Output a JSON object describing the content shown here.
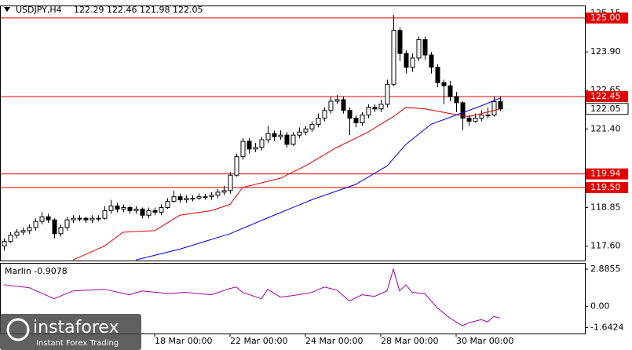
{
  "chart_data": {
    "type": "candlestick",
    "symbol": "USDJPY,H4",
    "categories": [
      null,
      null,
      null,
      null,
      null,
      null,
      null,
      null,
      null,
      null,
      null,
      null,
      null,
      null,
      null,
      null,
      null,
      null,
      null,
      null,
      null,
      null,
      null,
      null,
      "18 Mar 00:00",
      null,
      null,
      null,
      null,
      null,
      null,
      null,
      null,
      null,
      null,
      null,
      "22 Mar 00:00",
      null,
      null,
      null,
      null,
      null,
      null,
      null,
      null,
      null,
      null,
      null,
      "24 Mar 00:00",
      null,
      null,
      null,
      null,
      null,
      null,
      null,
      null,
      null,
      null,
      null,
      "28 Mar 00:00",
      null,
      null,
      null,
      null,
      null,
      null,
      null,
      null,
      null,
      null,
      null,
      "30 Mar 00:00",
      null,
      null,
      null,
      null,
      null,
      null,
      null
    ],
    "open": [
      117.6,
      117.75,
      117.95,
      118.05,
      118.1,
      118.2,
      118.4,
      118.55,
      118.45,
      118.0,
      118.2,
      118.45,
      118.5,
      118.5,
      118.45,
      118.5,
      118.5,
      118.75,
      118.9,
      118.8,
      118.85,
      118.75,
      118.8,
      118.6,
      118.75,
      118.7,
      118.85,
      119.05,
      119.2,
      119.1,
      119.15,
      119.15,
      119.2,
      119.2,
      119.25,
      119.35,
      119.4,
      119.9,
      120.5,
      121.0,
      120.75,
      120.8,
      121.05,
      121.25,
      121.15,
      121.2,
      120.9,
      121.2,
      121.3,
      121.4,
      121.55,
      121.75,
      122.0,
      122.3,
      122.35,
      122.0,
      121.75,
      121.6,
      121.85,
      122.1,
      122.05,
      122.2,
      122.85,
      124.6,
      123.85,
      123.4,
      123.7,
      124.3,
      123.8,
      123.4,
      122.9,
      122.8,
      122.45,
      122.25,
      121.75,
      121.65,
      121.75,
      121.85,
      121.85,
      122.29
    ],
    "high": [
      117.85,
      118.05,
      118.15,
      118.2,
      118.3,
      118.5,
      118.7,
      118.65,
      118.5,
      118.3,
      118.55,
      118.6,
      118.6,
      118.55,
      118.6,
      118.6,
      118.9,
      119.1,
      119.0,
      118.95,
      118.9,
      118.9,
      118.85,
      118.85,
      118.85,
      118.95,
      119.15,
      119.4,
      119.3,
      119.25,
      119.25,
      119.3,
      119.3,
      119.35,
      119.45,
      119.55,
      120.0,
      120.6,
      121.1,
      121.1,
      120.95,
      121.15,
      121.5,
      121.35,
      121.35,
      121.3,
      121.3,
      121.45,
      121.5,
      121.65,
      121.9,
      122.1,
      122.45,
      122.5,
      122.45,
      122.1,
      121.85,
      121.95,
      122.2,
      122.2,
      122.35,
      123.0,
      125.1,
      124.7,
      123.95,
      123.85,
      124.4,
      124.4,
      123.9,
      123.5,
      123.0,
      122.95,
      122.6,
      122.3,
      121.85,
      121.9,
      122.0,
      122.1,
      122.45,
      122.46
    ],
    "low": [
      117.45,
      117.7,
      117.85,
      117.95,
      118.0,
      118.1,
      118.3,
      118.35,
      117.85,
      117.9,
      118.1,
      118.35,
      118.4,
      118.35,
      118.35,
      118.4,
      118.45,
      118.65,
      118.7,
      118.7,
      118.65,
      118.65,
      118.5,
      118.5,
      118.6,
      118.6,
      118.8,
      119.0,
      119.0,
      119.0,
      119.05,
      119.1,
      119.1,
      119.1,
      119.15,
      119.25,
      119.3,
      119.85,
      120.4,
      120.6,
      120.65,
      120.7,
      120.95,
      121.0,
      121.05,
      120.8,
      120.85,
      121.1,
      121.2,
      121.3,
      121.45,
      121.65,
      121.9,
      122.2,
      121.9,
      121.2,
      121.45,
      121.5,
      121.75,
      121.95,
      121.95,
      122.1,
      122.8,
      123.6,
      123.2,
      123.25,
      123.6,
      123.65,
      123.2,
      122.75,
      122.2,
      122.3,
      121.95,
      121.35,
      121.5,
      121.6,
      121.65,
      121.75,
      121.8,
      121.98
    ],
    "close": [
      117.75,
      117.95,
      118.05,
      118.1,
      118.2,
      118.4,
      118.55,
      118.45,
      118.0,
      118.2,
      118.45,
      118.5,
      118.5,
      118.45,
      118.5,
      118.5,
      118.75,
      118.9,
      118.8,
      118.85,
      118.75,
      118.8,
      118.6,
      118.75,
      118.7,
      118.85,
      119.05,
      119.2,
      119.1,
      119.15,
      119.15,
      119.2,
      119.2,
      119.25,
      119.35,
      119.4,
      119.9,
      120.5,
      121.0,
      120.75,
      120.8,
      121.05,
      121.25,
      121.15,
      121.2,
      120.9,
      121.2,
      121.3,
      121.4,
      121.55,
      121.75,
      122.0,
      122.3,
      122.35,
      122.0,
      121.75,
      121.6,
      121.85,
      122.1,
      122.05,
      122.2,
      122.85,
      124.6,
      123.85,
      123.4,
      123.7,
      124.3,
      123.8,
      123.4,
      122.9,
      122.8,
      122.45,
      122.25,
      121.75,
      121.65,
      121.75,
      121.85,
      121.85,
      122.29,
      122.05
    ],
    "series": [
      {
        "color": "#e00000",
        "x": [
          11,
          16,
          19,
          24,
          28,
          33,
          36,
          38,
          44,
          48,
          53,
          58,
          62,
          64,
          67,
          71,
          74,
          78,
          79
        ],
        "values": [
          117.15,
          117.6,
          118.05,
          118.1,
          118.6,
          118.75,
          118.95,
          119.5,
          119.8,
          120.2,
          120.8,
          121.3,
          121.8,
          122.1,
          122.05,
          121.9,
          121.8,
          122.0,
          122.05
        ]
      },
      {
        "color": "#0000e0",
        "x": [
          21,
          28,
          36,
          43,
          49,
          56,
          61,
          64,
          68,
          72,
          76,
          79
        ],
        "values": [
          117.15,
          117.5,
          118.0,
          118.6,
          119.1,
          119.6,
          120.2,
          120.9,
          121.55,
          121.85,
          122.15,
          122.4
        ]
      }
    ],
    "levels": [
      {
        "value": 125,
        "label": "125.00"
      },
      {
        "value": 122.45,
        "label": "122.45"
      },
      {
        "value": 119.94,
        "label": "119.94"
      },
      {
        "value": 119.5,
        "label": "119.50"
      }
    ],
    "level_color": "#e00000",
    "ylim": [
      117.13,
      125.38
    ],
    "yticks": [
      125.15,
      {
        "value": 123.9,
        "label": "123.90"
      },
      122.65,
      {
        "value": 121.4,
        "label": "121.40"
      },
      118.85,
      {
        "value": 117.6,
        "label": "117.60"
      }
    ],
    "indicator": {
      "title": "Marlin -0.9078",
      "color": "#a000a0",
      "x": [
        0,
        4,
        8,
        11,
        16,
        20,
        22,
        26,
        29,
        33,
        36,
        37,
        38,
        41,
        42,
        44,
        46,
        49,
        51,
        53,
        55,
        57,
        59,
        61,
        62,
        63,
        64,
        65,
        67,
        69,
        71,
        73,
        74,
        76,
        77,
        78,
        79
      ],
      "values": [
        1.68,
        1.45,
        0.6,
        1.2,
        1.33,
        0.9,
        1.2,
        1.0,
        1.08,
        0.9,
        1.39,
        1.5,
        1.08,
        0.6,
        1.33,
        0.72,
        0.84,
        1.08,
        1.5,
        1.27,
        0.42,
        0.9,
        0.78,
        1.2,
        2.8855,
        1.2,
        1.68,
        1.08,
        1.0,
        -0.12,
        -0.9,
        -1.5,
        -1.27,
        -1.02,
        -1.2,
        -0.78,
        -0.9078
      ],
      "ylim": [
        -2.1,
        3.31
      ],
      "yticks": [
        2.8855,
        {
          "value": 0,
          "label": "0.00"
        },
        -1.6424
      ]
    },
    "watermark": {
      "brand": "instaforex",
      "tagline": "Instant Forex Trading"
    }
  }
}
